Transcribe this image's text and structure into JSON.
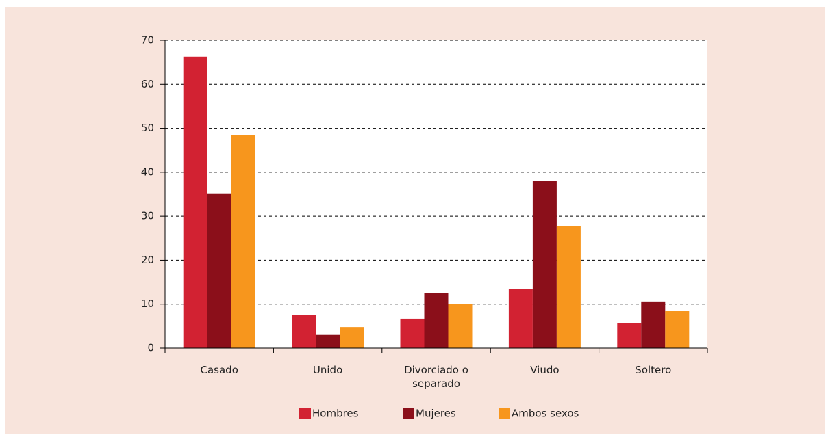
{
  "chart_data": {
    "type": "bar",
    "categories": [
      "Casado",
      "Unido",
      "Divorciado o separado",
      "Viudo",
      "Soltero"
    ],
    "series": [
      {
        "name": "Hombres",
        "color": "#d22232",
        "values": [
          66.3,
          7.5,
          6.7,
          13.5,
          5.6
        ]
      },
      {
        "name": "Mujeres",
        "color": "#8b0f1a",
        "values": [
          35.2,
          3.0,
          12.6,
          38.1,
          10.6
        ]
      },
      {
        "name": "Ambos sexos",
        "color": "#f7961d",
        "values": [
          48.4,
          4.8,
          10.1,
          27.8,
          8.4
        ]
      }
    ],
    "ylim": [
      0,
      70
    ],
    "yticks": [
      0,
      10,
      20,
      30,
      40,
      50,
      60,
      70
    ],
    "grid": true,
    "legend": "bottom"
  }
}
